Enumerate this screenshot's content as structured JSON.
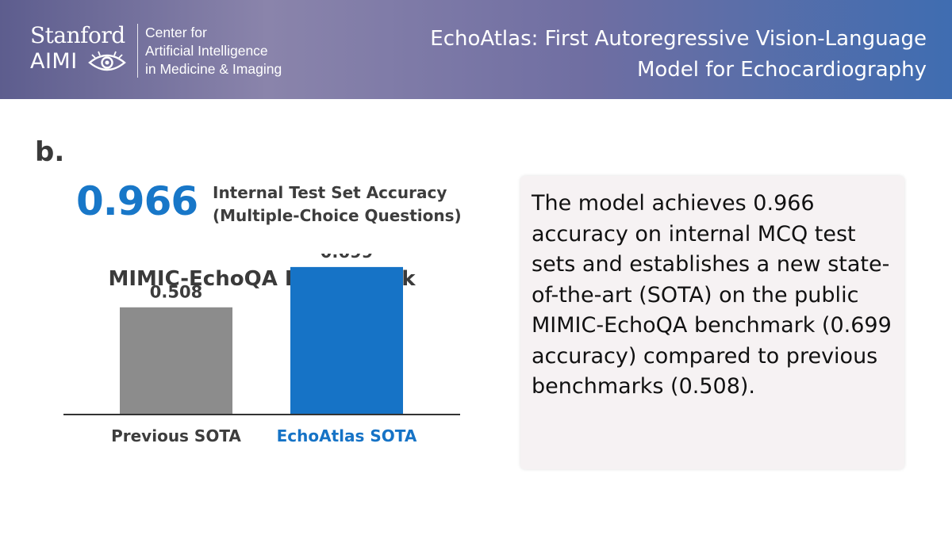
{
  "header": {
    "logo_line1": "Stanford",
    "logo_line2": "AIMI",
    "center_name_lines": [
      "Center for",
      "Artificial Intelligence",
      "in Medicine & Imaging"
    ],
    "title_lines": [
      "EchoAtlas: First Autoregressive Vision-Language",
      "Model for Echocardiography"
    ]
  },
  "panel_label": "b.",
  "metric": {
    "value": "0.966",
    "desc_lines": [
      "Internal Test Set Accuracy",
      "(Multiple-Choice Questions)"
    ]
  },
  "chart_data": {
    "type": "bar",
    "title": "MIMIC-EchoQA Benchmark",
    "categories": [
      "Previous SOTA",
      "EchoAtlas SOTA"
    ],
    "values": [
      0.508,
      0.699
    ],
    "data_labels": [
      "0.508",
      "0.699"
    ],
    "ylim": [
      0,
      0.8
    ],
    "grid": false,
    "colors": [
      "#8c8c8c",
      "#1673c6"
    ],
    "label_colors": [
      "#3d3d3d",
      "#1673c6"
    ]
  },
  "summary_text": "The model achieves 0.966 accuracy on internal MCQ test sets and establishes a new state-of-the-art (SOTA) on the public MIMIC-EchoQA benchmark (0.699 accuracy) compared to previous benchmarks (0.508).",
  "colors": {
    "accent_blue": "#1877c8",
    "box_bg": "#f6f2f3"
  }
}
